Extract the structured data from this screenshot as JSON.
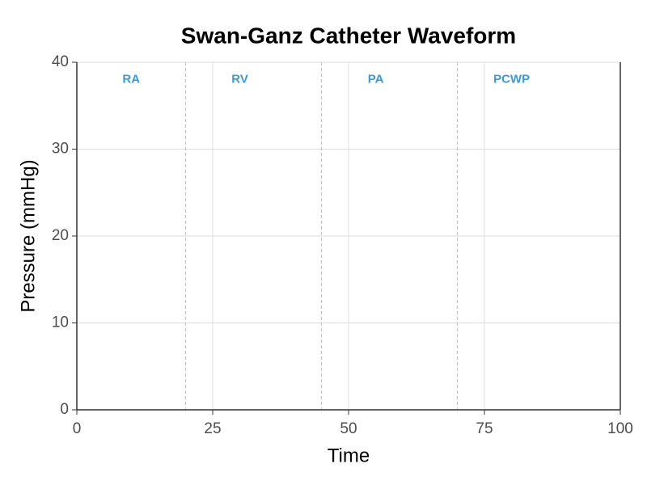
{
  "chart_data": {
    "type": "line",
    "title": "Swan-Ganz Catheter Waveform",
    "x_label": "Time",
    "y_label": "Pressure (mmHg)",
    "xlim": [
      0,
      100
    ],
    "xticks": [
      0,
      25,
      50,
      75,
      100
    ],
    "ylim": [
      0,
      40
    ],
    "yticks": [
      0,
      10,
      20,
      30,
      40
    ],
    "grid": true,
    "vlines": [
      20,
      45,
      70
    ],
    "annotation_color": "#3a9ad9",
    "annotations": [
      {
        "text": "RA",
        "x": 10,
        "y": 38
      },
      {
        "text": "RV",
        "x": 30,
        "y": 38
      },
      {
        "text": "PA",
        "x": 55,
        "y": 38
      },
      {
        "text": "PCWP",
        "x": 80,
        "y": 38
      }
    ]
  }
}
